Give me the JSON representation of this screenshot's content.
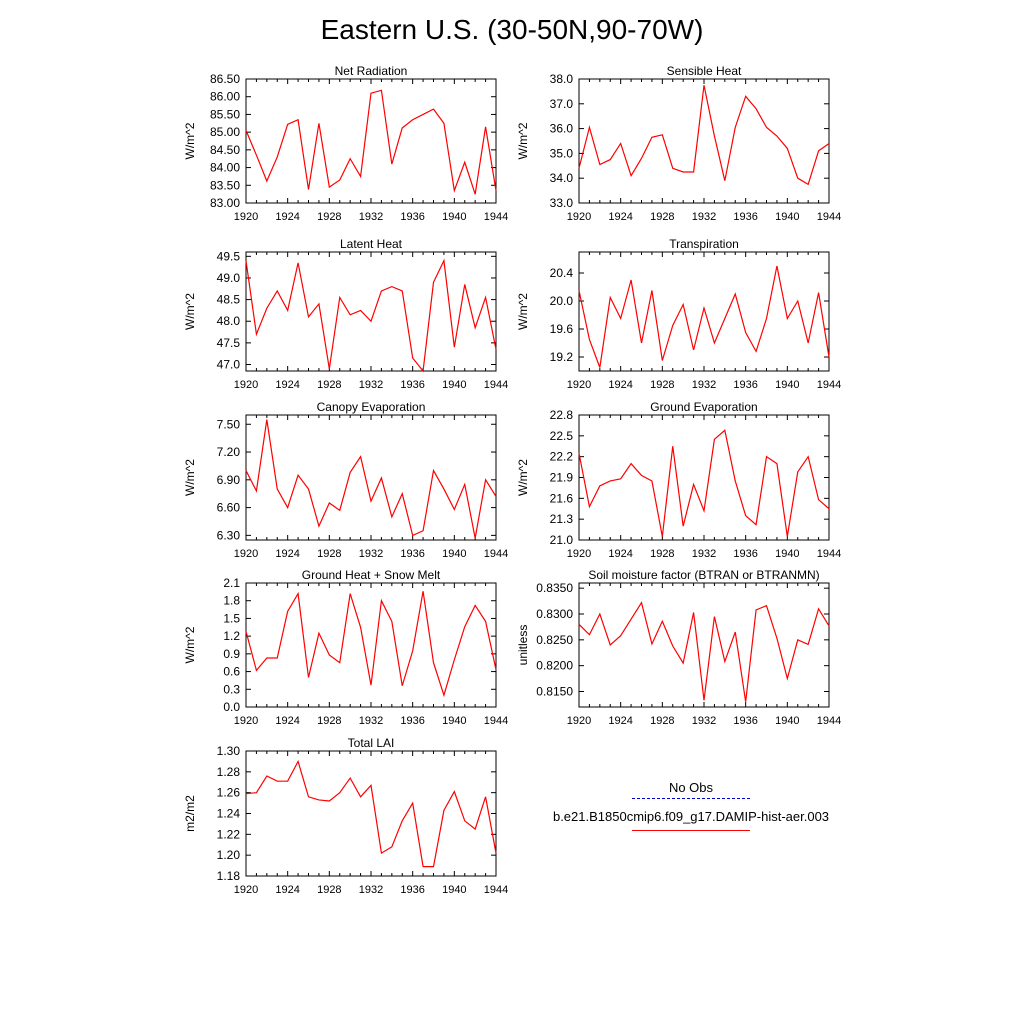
{
  "title": "Eastern U.S. (30-50N,90-70W)",
  "legend": {
    "obs_label": "No Obs",
    "obs_color": "#0000cc",
    "model_label": "b.e21.B1850cmip6.f09_g17.DAMIP-hist-aer.003",
    "model_color": "#ff0000"
  },
  "chart_data": [
    {
      "type": "line",
      "title": "Net Radiation",
      "ylabel": "W/m^2",
      "xlim": [
        1920,
        1944
      ],
      "ylim": [
        83.0,
        86.5
      ],
      "xticks": [
        "1920",
        "1924",
        "1928",
        "1932",
        "1936",
        "1940",
        "1944"
      ],
      "yticks": [
        "83.00",
        "83.50",
        "84.00",
        "84.50",
        "85.00",
        "85.50",
        "86.00",
        "86.50"
      ],
      "x": [
        1920,
        1921,
        1922,
        1923,
        1924,
        1925,
        1926,
        1927,
        1928,
        1929,
        1930,
        1931,
        1932,
        1933,
        1934,
        1935,
        1936,
        1937,
        1938,
        1939,
        1940,
        1941,
        1942,
        1943,
        1944
      ],
      "series": [
        {
          "values": [
            85.05,
            84.35,
            83.62,
            84.3,
            85.22,
            85.35,
            83.38,
            85.25,
            83.45,
            83.65,
            84.25,
            83.75,
            86.1,
            86.18,
            84.1,
            85.12,
            85.35,
            85.5,
            85.65,
            85.25,
            83.35,
            84.15,
            83.25,
            85.15,
            83.35
          ]
        }
      ]
    },
    {
      "type": "line",
      "title": "Sensible Heat",
      "ylabel": "W/m^2",
      "xlim": [
        1920,
        1944
      ],
      "ylim": [
        33.0,
        38.0
      ],
      "xticks": [
        "1920",
        "1924",
        "1928",
        "1932",
        "1936",
        "1940",
        "1944"
      ],
      "yticks": [
        "33.0",
        "34.0",
        "35.0",
        "36.0",
        "37.0",
        "38.0"
      ],
      "x": [
        1920,
        1921,
        1922,
        1923,
        1924,
        1925,
        1926,
        1927,
        1928,
        1929,
        1930,
        1931,
        1932,
        1933,
        1934,
        1935,
        1936,
        1937,
        1938,
        1939,
        1940,
        1941,
        1942,
        1943,
        1944
      ],
      "series": [
        {
          "values": [
            34.4,
            36.05,
            34.55,
            34.75,
            35.4,
            34.1,
            34.8,
            35.65,
            35.75,
            34.4,
            34.25,
            34.25,
            37.75,
            35.7,
            33.9,
            36.05,
            37.3,
            36.8,
            36.05,
            35.7,
            35.2,
            34.0,
            33.75,
            35.1,
            35.4
          ]
        }
      ]
    },
    {
      "type": "line",
      "title": "Latent Heat",
      "ylabel": "W/m^2",
      "xlim": [
        1920,
        1944
      ],
      "ylim": [
        46.85,
        49.6
      ],
      "xticks": [
        "1920",
        "1924",
        "1928",
        "1932",
        "1936",
        "1940",
        "1944"
      ],
      "yticks": [
        "47.0",
        "47.5",
        "48.0",
        "48.5",
        "49.0",
        "49.5"
      ],
      "x": [
        1920,
        1921,
        1922,
        1923,
        1924,
        1925,
        1926,
        1927,
        1928,
        1929,
        1930,
        1931,
        1932,
        1933,
        1934,
        1935,
        1936,
        1937,
        1938,
        1939,
        1940,
        1941,
        1942,
        1943,
        1944
      ],
      "series": [
        {
          "values": [
            49.4,
            47.7,
            48.3,
            48.7,
            48.25,
            49.35,
            48.1,
            48.4,
            46.9,
            48.55,
            48.15,
            48.25,
            48.0,
            48.7,
            48.8,
            48.7,
            47.15,
            46.85,
            48.9,
            49.4,
            47.4,
            48.85,
            47.85,
            48.55,
            47.35
          ]
        }
      ]
    },
    {
      "type": "line",
      "title": "Transpiration",
      "ylabel": "W/m^2",
      "xlim": [
        1920,
        1944
      ],
      "ylim": [
        19.0,
        20.7
      ],
      "xticks": [
        "1920",
        "1924",
        "1928",
        "1932",
        "1936",
        "1940",
        "1944"
      ],
      "yticks": [
        "19.2",
        "19.6",
        "20.0",
        "20.4"
      ],
      "x": [
        1920,
        1921,
        1922,
        1923,
        1924,
        1925,
        1926,
        1927,
        1928,
        1929,
        1930,
        1931,
        1932,
        1933,
        1934,
        1935,
        1936,
        1937,
        1938,
        1939,
        1940,
        1941,
        1942,
        1943,
        1944
      ],
      "series": [
        {
          "values": [
            20.15,
            19.45,
            19.05,
            20.05,
            19.75,
            20.3,
            19.4,
            20.15,
            19.15,
            19.65,
            19.95,
            19.3,
            19.9,
            19.4,
            19.75,
            20.1,
            19.55,
            19.28,
            19.75,
            20.5,
            19.75,
            20.0,
            19.4,
            20.12,
            19.2
          ]
        }
      ]
    },
    {
      "type": "line",
      "title": "Canopy Evaporation",
      "ylabel": "W/m^2",
      "xlim": [
        1920,
        1944
      ],
      "ylim": [
        6.25,
        7.6
      ],
      "xticks": [
        "1920",
        "1924",
        "1928",
        "1932",
        "1936",
        "1940",
        "1944"
      ],
      "yticks": [
        "6.30",
        "6.60",
        "6.90",
        "7.20",
        "7.50"
      ],
      "x": [
        1920,
        1921,
        1922,
        1923,
        1924,
        1925,
        1926,
        1927,
        1928,
        1929,
        1930,
        1931,
        1932,
        1933,
        1934,
        1935,
        1936,
        1937,
        1938,
        1939,
        1940,
        1941,
        1942,
        1943,
        1944
      ],
      "series": [
        {
          "values": [
            7.0,
            6.78,
            7.55,
            6.8,
            6.6,
            6.95,
            6.8,
            6.4,
            6.65,
            6.57,
            6.98,
            7.15,
            6.67,
            6.92,
            6.5,
            6.75,
            6.3,
            6.35,
            7.0,
            6.8,
            6.58,
            6.85,
            6.27,
            6.9,
            6.72
          ]
        }
      ]
    },
    {
      "type": "line",
      "title": "Ground Evaporation",
      "ylabel": "W/m^2",
      "xlim": [
        1920,
        1944
      ],
      "ylim": [
        21.0,
        22.8
      ],
      "xticks": [
        "1920",
        "1924",
        "1928",
        "1932",
        "1936",
        "1940",
        "1944"
      ],
      "yticks": [
        "21.0",
        "21.3",
        "21.6",
        "21.9",
        "22.2",
        "22.5",
        "22.8"
      ],
      "x": [
        1920,
        1921,
        1922,
        1923,
        1924,
        1925,
        1926,
        1927,
        1928,
        1929,
        1930,
        1931,
        1932,
        1933,
        1934,
        1935,
        1936,
        1937,
        1938,
        1939,
        1940,
        1941,
        1942,
        1943,
        1944
      ],
      "series": [
        {
          "values": [
            22.25,
            21.48,
            21.78,
            21.85,
            21.88,
            22.1,
            21.93,
            21.85,
            21.05,
            22.35,
            21.2,
            21.8,
            21.42,
            22.45,
            22.58,
            21.85,
            21.35,
            21.22,
            22.2,
            22.1,
            21.05,
            21.98,
            22.2,
            21.58,
            21.45
          ]
        }
      ]
    },
    {
      "type": "line",
      "title": "Ground Heat + Snow Melt",
      "ylabel": "W/m^2",
      "xlim": [
        1920,
        1944
      ],
      "ylim": [
        0.0,
        2.1
      ],
      "xticks": [
        "1920",
        "1924",
        "1928",
        "1932",
        "1936",
        "1940",
        "1944"
      ],
      "yticks": [
        "0.0",
        "0.3",
        "0.6",
        "0.9",
        "1.2",
        "1.5",
        "1.8",
        "2.1"
      ],
      "x": [
        1920,
        1921,
        1922,
        1923,
        1924,
        1925,
        1926,
        1927,
        1928,
        1929,
        1930,
        1931,
        1932,
        1933,
        1934,
        1935,
        1936,
        1937,
        1938,
        1939,
        1940,
        1941,
        1942,
        1943,
        1944
      ],
      "series": [
        {
          "values": [
            1.28,
            0.62,
            0.83,
            0.83,
            1.62,
            1.92,
            0.5,
            1.25,
            0.88,
            0.75,
            1.92,
            1.35,
            0.37,
            1.8,
            1.45,
            0.36,
            0.95,
            1.96,
            0.75,
            0.2,
            0.8,
            1.36,
            1.72,
            1.45,
            0.63
          ]
        }
      ]
    },
    {
      "type": "line",
      "title": "Soil moisture factor (BTRAN or BTRANMN)",
      "ylabel": "unitless",
      "xlim": [
        1920,
        1944
      ],
      "ylim": [
        0.812,
        0.836
      ],
      "xticks": [
        "1920",
        "1924",
        "1928",
        "1932",
        "1936",
        "1940",
        "1944"
      ],
      "yticks": [
        "0.8150",
        "0.8200",
        "0.8250",
        "0.8300",
        "0.8350"
      ],
      "x": [
        1920,
        1921,
        1922,
        1923,
        1924,
        1925,
        1926,
        1927,
        1928,
        1929,
        1930,
        1931,
        1932,
        1933,
        1934,
        1935,
        1936,
        1937,
        1938,
        1939,
        1940,
        1941,
        1942,
        1943,
        1944
      ],
      "series": [
        {
          "values": [
            0.828,
            0.826,
            0.83,
            0.824,
            0.8258,
            0.829,
            0.8322,
            0.8242,
            0.8286,
            0.8238,
            0.8205,
            0.8303,
            0.8133,
            0.8295,
            0.8208,
            0.8265,
            0.813,
            0.8308,
            0.8316,
            0.8253,
            0.8175,
            0.825,
            0.8241,
            0.831,
            0.8277
          ]
        }
      ]
    },
    {
      "type": "line",
      "title": "Total LAI",
      "ylabel": "m2/m2",
      "xlim": [
        1920,
        1944
      ],
      "ylim": [
        1.18,
        1.3
      ],
      "xticks": [
        "1920",
        "1924",
        "1928",
        "1932",
        "1936",
        "1940",
        "1944"
      ],
      "yticks": [
        "1.18",
        "1.20",
        "1.22",
        "1.24",
        "1.26",
        "1.28",
        "1.30"
      ],
      "x": [
        1920,
        1921,
        1922,
        1923,
        1924,
        1925,
        1926,
        1927,
        1928,
        1929,
        1930,
        1931,
        1932,
        1933,
        1934,
        1935,
        1936,
        1937,
        1938,
        1939,
        1940,
        1941,
        1942,
        1943,
        1944
      ],
      "series": [
        {
          "values": [
            1.259,
            1.26,
            1.276,
            1.271,
            1.271,
            1.29,
            1.256,
            1.253,
            1.252,
            1.26,
            1.274,
            1.256,
            1.267,
            1.202,
            1.208,
            1.233,
            1.25,
            1.189,
            1.189,
            1.243,
            1.261,
            1.233,
            1.225,
            1.256,
            1.202
          ]
        }
      ]
    }
  ]
}
